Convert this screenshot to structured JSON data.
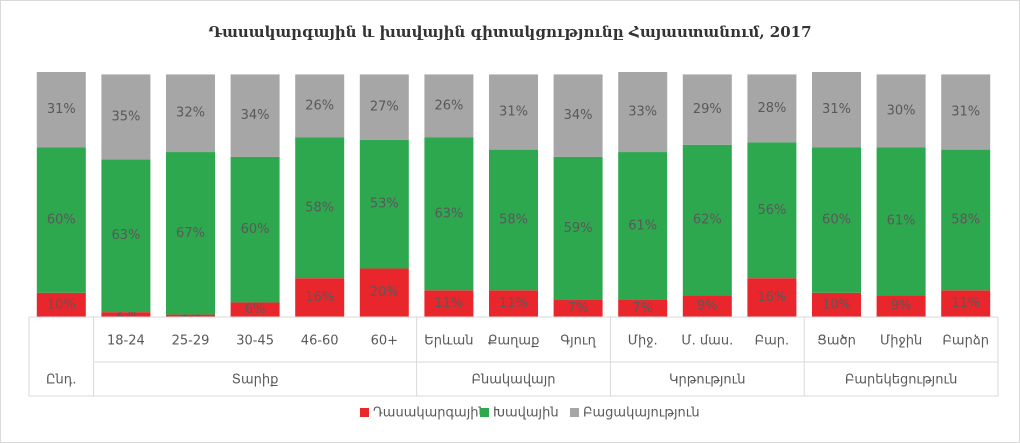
{
  "chart_data": {
    "type": "stacked_bar",
    "title": "Դասակարգային և խավային գիտակցությունը Հայաստանում, 2017",
    "groups": [
      {
        "name": "Ընդ.",
        "categories": [
          null
        ]
      },
      {
        "name": "Տարիք",
        "categories": [
          "18-24",
          "25-29",
          "30-45",
          "46-60",
          "60+"
        ]
      },
      {
        "name": "Բնակավայր",
        "categories": [
          "Երևան",
          "Քաղաք",
          "Գյուղ"
        ]
      },
      {
        "name": "Կրթություն",
        "categories": [
          "Միջ.",
          "Մ. մաս.",
          "Բար."
        ]
      },
      {
        "name": "Բարեկեցություն",
        "categories": [
          "Ցածր",
          "Միջին",
          "Բարձր"
        ]
      }
    ],
    "series": [
      {
        "name": "Դասակարգային",
        "color": "#e8262b",
        "values": [
          10,
          2,
          1,
          6,
          16,
          20,
          11,
          11,
          7,
          7,
          9,
          16,
          10,
          9,
          11
        ],
        "value_labels": [
          "10%",
          "2%",
          "1%",
          "6%",
          "16%",
          "20%",
          "11%",
          "11%",
          "7%",
          "7%",
          "9%",
          "16%",
          "10%",
          "9%",
          "11%"
        ]
      },
      {
        "name": "Խավային",
        "color": "#2ea84f",
        "values": [
          60,
          63,
          67,
          60,
          58,
          53,
          63,
          58,
          59,
          61,
          62,
          56,
          60,
          61,
          58
        ],
        "value_labels": [
          "60%",
          "63%",
          "67%",
          "60%",
          "58%",
          "53%",
          "63%",
          "58%",
          "59%",
          "61%",
          "62%",
          "56%",
          "60%",
          "61%",
          "58%"
        ]
      },
      {
        "name": "Բացակայություն",
        "color": "#a6a6a6",
        "values": [
          31,
          35,
          32,
          34,
          26,
          27,
          26,
          31,
          34,
          33,
          29,
          28,
          31,
          30,
          31
        ],
        "value_labels": [
          "31%",
          "35%",
          "32%",
          "34%",
          "26%",
          "27%",
          "26%",
          "31%",
          "34%",
          "33%",
          "29%",
          "28%",
          "31%",
          "30%",
          "31%"
        ]
      }
    ]
  }
}
